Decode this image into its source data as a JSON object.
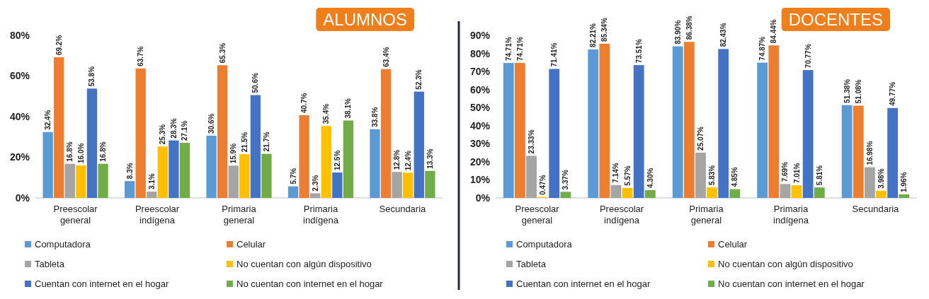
{
  "chart_data": [
    {
      "type": "bar",
      "title": "ALUMNOS",
      "categories": [
        "Preescolar general",
        "Preescolar indígena",
        "Primaria general",
        "Primaria indígena",
        "Secundaria"
      ],
      "ylim": [
        0,
        80
      ],
      "yticks": [
        {
          "value": 0,
          "label": "0%"
        },
        {
          "value": 20,
          "label": "20%"
        },
        {
          "value": 40,
          "label": "40%"
        },
        {
          "value": 60,
          "label": "60%"
        },
        {
          "value": 80,
          "label": "80%"
        }
      ],
      "legend": "bottom",
      "series": [
        {
          "name": "Computadora",
          "color": "#5b9bd5",
          "values": [
            32.4,
            8.3,
            30.6,
            5.7,
            33.8
          ],
          "value_labels": [
            "32.4%",
            "8.3%",
            "30.6%",
            "5.7%",
            "33.8%"
          ]
        },
        {
          "name": "Celular",
          "color": "#ed7d31",
          "values": [
            69.2,
            63.7,
            65.3,
            40.7,
            63.4
          ],
          "value_labels": [
            "69.2%",
            "63.7%",
            "65.3%",
            "40.7%",
            "63.4%"
          ]
        },
        {
          "name": "Tableta",
          "color": "#a5a5a5",
          "values": [
            16.8,
            3.1,
            15.9,
            2.3,
            12.8
          ],
          "value_labels": [
            "16.8%",
            "3.1%",
            "15.9%",
            "2.3%",
            "12.8%"
          ]
        },
        {
          "name": "No cuentan con algún dispositivo",
          "color": "#ffc000",
          "values": [
            16.0,
            25.3,
            21.5,
            35.4,
            12.4
          ],
          "value_labels": [
            "16.0%",
            "25.3%",
            "21.5%",
            "35.4%",
            "12.4%"
          ]
        },
        {
          "name": "Cuentan con internet en el hogar",
          "color": "#4472c4",
          "values": [
            53.8,
            28.3,
            50.6,
            12.5,
            52.3
          ],
          "value_labels": [
            "53.8%",
            "28.3%",
            "50.6%",
            "12.5%",
            "52.3%"
          ]
        },
        {
          "name": "No cuentan con internet en el hogar",
          "color": "#70ad47",
          "values": [
            16.8,
            27.1,
            21.7,
            38.1,
            13.3
          ],
          "value_labels": [
            "16.8%",
            "27.1%",
            "21.7%",
            "38.1%",
            "13.3%"
          ]
        }
      ]
    },
    {
      "type": "bar",
      "title": "DOCENTES",
      "categories": [
        "Preescolar general",
        "Preescolar indígena",
        "Primaria general",
        "Primaria indígena",
        "Secundaria"
      ],
      "ylim": [
        0,
        90
      ],
      "yticks": [
        {
          "value": 0,
          "label": "0%"
        },
        {
          "value": 10,
          "label": "10%"
        },
        {
          "value": 20,
          "label": "20%"
        },
        {
          "value": 30,
          "label": "30%"
        },
        {
          "value": 40,
          "label": "40%"
        },
        {
          "value": 50,
          "label": "50%"
        },
        {
          "value": 60,
          "label": "60%"
        },
        {
          "value": 70,
          "label": "70%"
        },
        {
          "value": 80,
          "label": "80%"
        },
        {
          "value": 90,
          "label": "90%"
        }
      ],
      "legend": "bottom",
      "series": [
        {
          "name": "Computadora",
          "color": "#5b9bd5",
          "values": [
            74.71,
            82.21,
            83.9,
            74.87,
            51.38
          ],
          "value_labels": [
            "74.71%",
            "82.21%",
            "83.90%",
            "74.87%",
            "51.38%"
          ]
        },
        {
          "name": "Celular",
          "color": "#ed7d31",
          "values": [
            74.71,
            85.34,
            86.38,
            84.44,
            51.08
          ],
          "value_labels": [
            "74.71%",
            "85.34%",
            "86.38%",
            "84.44%",
            "51.08%"
          ]
        },
        {
          "name": "Tableta",
          "color": "#a5a5a5",
          "values": [
            23.33,
            7.14,
            25.07,
            7.69,
            16.98
          ],
          "value_labels": [
            "23.33%",
            "7.14%",
            "25.07%",
            "7.69%",
            "16.98%"
          ]
        },
        {
          "name": "No cuentan con algún dispositivo",
          "color": "#ffc000",
          "values": [
            0.47,
            5.57,
            5.83,
            7.01,
            3.98
          ],
          "value_labels": [
            "0.47%",
            "5.57%",
            "5.83%",
            "7.01%",
            "3.98%"
          ]
        },
        {
          "name": "Cuentan con internet en el hogar",
          "color": "#4472c4",
          "values": [
            71.41,
            73.51,
            82.43,
            70.77,
            49.77
          ],
          "value_labels": [
            "71.41%",
            "73.51%",
            "82.43%",
            "70.77%",
            "49.77%"
          ]
        },
        {
          "name": "No cuentan con internet en el hogar",
          "color": "#70ad47",
          "values": [
            3.37,
            4.3,
            4.85,
            5.81,
            1.96
          ],
          "value_labels": [
            "3.37%",
            "4.30%",
            "4.85%",
            "5.81%",
            "1.96%"
          ]
        }
      ]
    }
  ]
}
